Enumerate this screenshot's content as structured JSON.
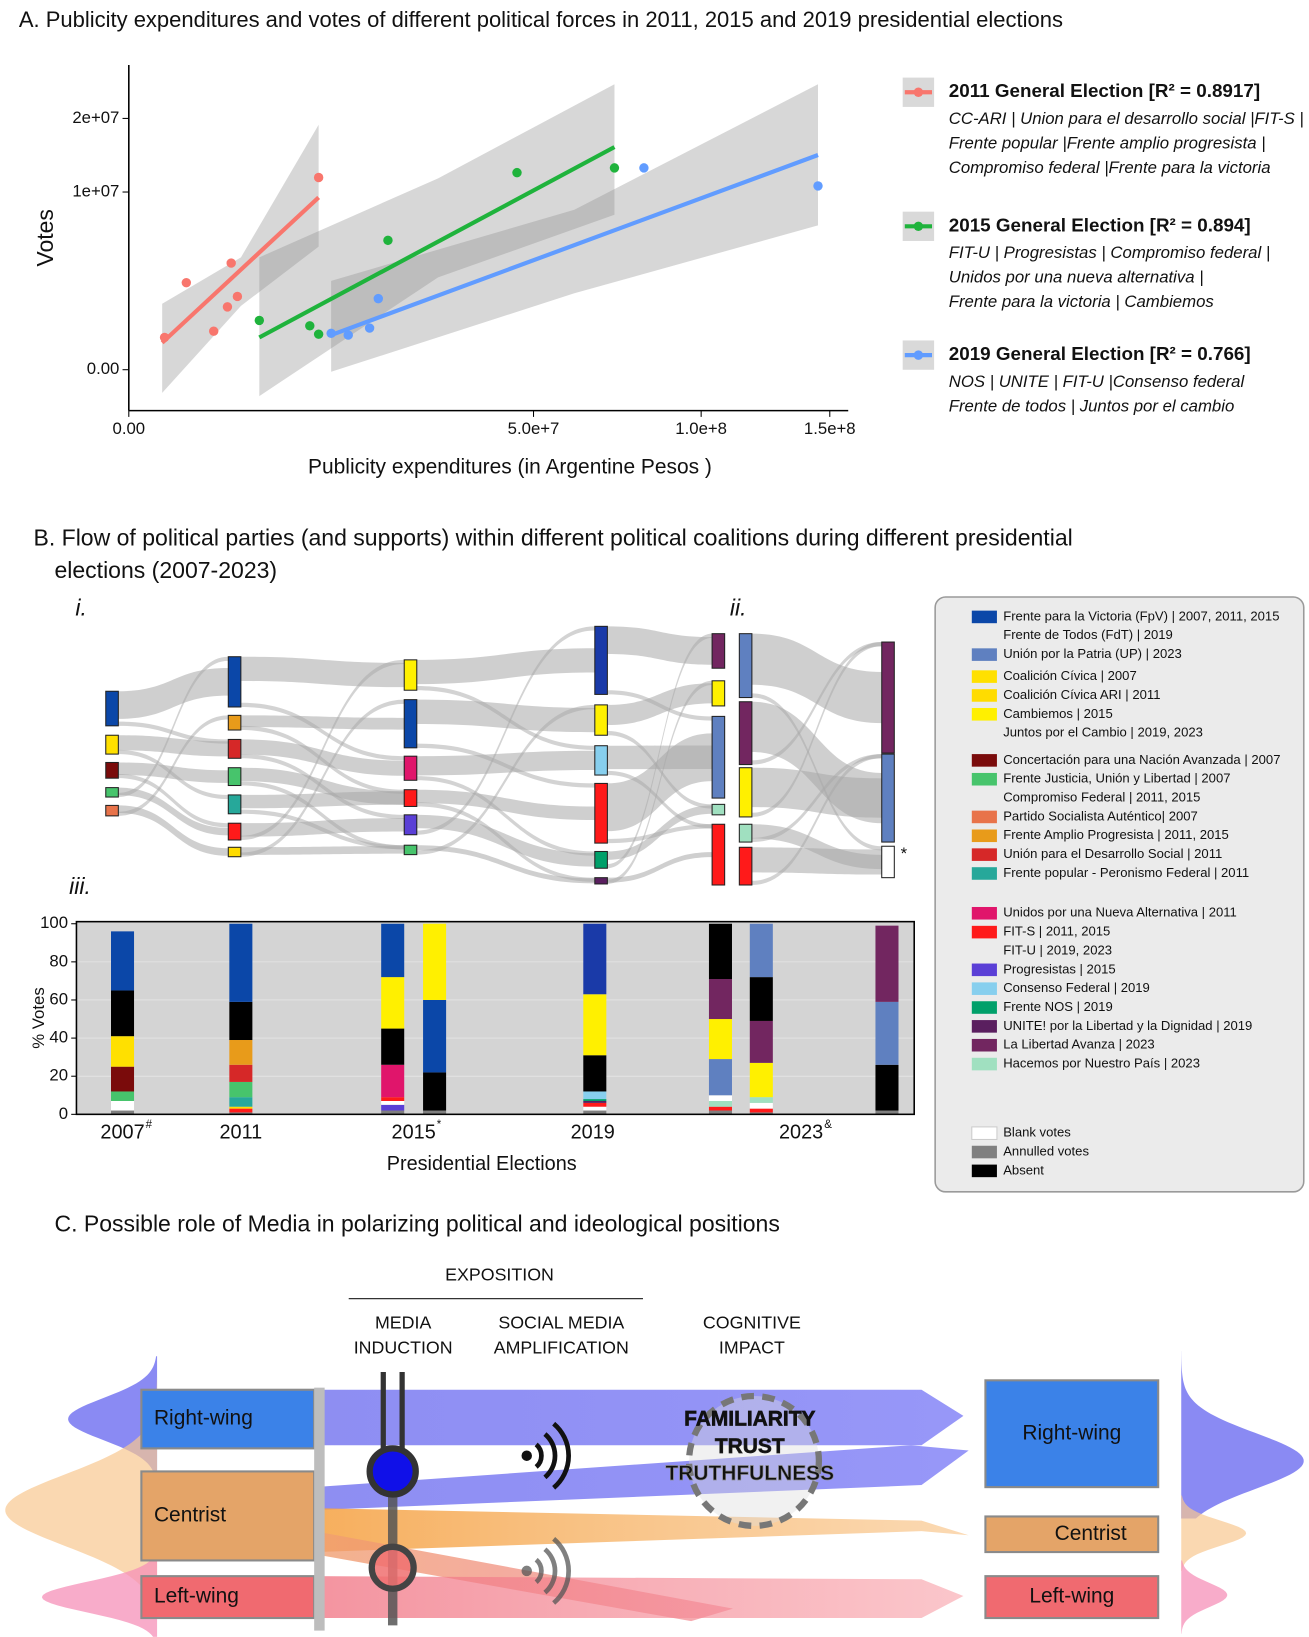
{
  "chart_data": [
    {
      "type": "scatter",
      "title": "A. Publicity expenditures and votes of different political forces in 2011, 2015 and 2019 presidential elections",
      "x_label": "Publicity expenditures (in Argentine Pesos )",
      "y_label": "Votes",
      "xscale": "sqrt",
      "yscale": "sqrt",
      "xlim": [
        0,
        158000000
      ],
      "ylim": [
        -530000,
        29400000
      ],
      "xticks": [
        {
          "value": 0,
          "label": "0.00"
        },
        {
          "value": 50000000,
          "label": "5.0e+7"
        },
        {
          "value": 100000000,
          "label": "1.0e+8"
        },
        {
          "value": 150000000,
          "label": "1.5e+8"
        }
      ],
      "yticks": [
        {
          "value": 0,
          "label": "0.00"
        },
        {
          "value": 10000000,
          "label": "1e+07"
        },
        {
          "value": 20000000,
          "label": "2e+07"
        }
      ],
      "series": [
        {
          "name": "2011 General Election [R² = 0.8917]",
          "color": "#f8766d",
          "parties": [
            "CC-ARI | Union para el desarrollo social |FIT-S |",
            "Frente popular |Frente amplio progresista |",
            "Compromiso federal |Frente para la victoria"
          ],
          "x": [
            390000,
            1010000,
            2200000,
            2970000,
            3200000,
            3600000,
            11000000
          ],
          "y": [
            330000,
            2400000,
            470000,
            1250000,
            3600000,
            1700000,
            11700000
          ],
          "fit": {
            "x": [
              340000,
              11000000
            ],
            "y": [
              230000,
              9400000
            ]
          },
          "band": {
            "x": [
              340000,
              3840000,
              11000000
            ],
            "upper": [
              1380000,
              4000000,
              19000000
            ],
            "lower": [
              -170000,
              1290000,
              4800000
            ]
          }
        },
        {
          "name": "2015 General Election  [R² = 0.894]",
          "color": "#1fb33c",
          "parties": [
            "FIT-U | Progresistas | Compromiso federal |",
            "Unidos por una nueva alternativa |",
            "Frente para la victoria | Cambiemos"
          ],
          "x": [
            5200000,
            10000000,
            11000000,
            20500000,
            46000000,
            72000000
          ],
          "y": [
            770000,
            610000,
            400000,
            5300000,
            12300000,
            12900000
          ],
          "fit": {
            "x": [
              5200000,
              72000000
            ],
            "y": [
              330000,
              15700000
            ]
          },
          "band": {
            "x": [
              5200000,
              29200000,
              72000000
            ],
            "upper": [
              4000000,
              11600000,
              25800000
            ],
            "lower": [
              -220000,
              2700000,
              7600000
            ]
          }
        },
        {
          "name": "2019 General Election  [R² = 0.766]",
          "color": "#619cff",
          "parties": [
            "NOS | UNITE | FIT-U |Consenso federal",
            "Frente de todos | Juntos por el cambio"
          ],
          "x": [
            12500000,
            14700000,
            17700000,
            19000000,
            81000000,
            145000000
          ],
          "y": [
            420000,
            380000,
            550000,
            1600000,
            12900000,
            10700000
          ],
          "fit": {
            "x": [
              12500000,
              145000000
            ],
            "y": [
              380000,
              14600000
            ]
          },
          "band": {
            "x": [
              12500000,
              60600000,
              145000000
            ],
            "upper": [
              2500000,
              8100000,
              25800000
            ],
            "lower": [
              -1400,
              1850000,
              6600000
            ]
          }
        }
      ]
    },
    {
      "type": "bar",
      "stacked": true,
      "y_label": "% Votes",
      "x_label": "Presidential Elections",
      "ylim": [
        0,
        100
      ],
      "yticks": [
        0,
        20,
        40,
        60,
        80,
        100
      ],
      "groups": [
        {
          "label": "2007",
          "mark": "#"
        },
        {
          "label": "2011"
        },
        {
          "label": "2015",
          "mark": "*"
        },
        {
          "label": "2019"
        },
        {
          "label": "2023",
          "mark": "&"
        }
      ],
      "bars": [
        {
          "segments": [
            {
              "color": "#7f7f7f",
              "value": 2
            },
            {
              "color": "#ffffff",
              "value": 5
            },
            {
              "color": "#47c46c",
              "value": 5
            },
            {
              "color": "#7a0b0b",
              "value": 13
            },
            {
              "color": "#ffe000",
              "value": 16
            },
            {
              "color": "#000000",
              "value": 24
            },
            {
              "color": "#0b47a8",
              "value": 31
            }
          ]
        },
        {
          "segments": [
            {
              "color": "#7f7f7f",
              "value": 1
            },
            {
              "color": "#ff1a1a",
              "value": 2
            },
            {
              "color": "#ffdc00",
              "value": 1
            },
            {
              "color": "#26a89a",
              "value": 5
            },
            {
              "color": "#47c46c",
              "value": 8
            },
            {
              "color": "#d62828",
              "value": 9
            },
            {
              "color": "#e89b1a",
              "value": 13
            },
            {
              "color": "#000000",
              "value": 20
            },
            {
              "color": "#0b47a8",
              "value": 41
            }
          ]
        },
        {
          "segments": [
            {
              "color": "#7f7f7f",
              "value": 2
            },
            {
              "color": "#5a3fd6",
              "value": 3
            },
            {
              "color": "#ffffff",
              "value": 2
            },
            {
              "color": "#ff1a1a",
              "value": 2
            },
            {
              "color": "#e0156b",
              "value": 17
            },
            {
              "color": "#000000",
              "value": 19
            },
            {
              "color": "#fff000",
              "value": 27
            },
            {
              "color": "#0b47a8",
              "value": 28
            }
          ]
        },
        {
          "segments": [
            {
              "color": "#7f7f7f",
              "value": 2
            },
            {
              "color": "#000000",
              "value": 20
            },
            {
              "color": "#0b47a8",
              "value": 38
            },
            {
              "color": "#fff000",
              "value": 40
            }
          ]
        },
        {
          "segments": [
            {
              "color": "#7f7f7f",
              "value": 2
            },
            {
              "color": "#ffffff",
              "value": 2
            },
            {
              "color": "#ff1a1a",
              "value": 2
            },
            {
              "color": "#5a1f5f",
              "value": 1
            },
            {
              "color": "#00a06a",
              "value": 1
            },
            {
              "color": "#87cfee",
              "value": 4
            },
            {
              "color": "#000000",
              "value": 19
            },
            {
              "color": "#fff000",
              "value": 32
            },
            {
              "color": "#1a3aa8",
              "value": 37
            }
          ]
        },
        {
          "segments": [
            {
              "color": "#7f7f7f",
              "value": 2
            },
            {
              "color": "#ff1a1a",
              "value": 2
            },
            {
              "color": "#a0e0c0",
              "value": 3
            },
            {
              "color": "#ffffff",
              "value": 3
            },
            {
              "color": "#5f80c0",
              "value": 19
            },
            {
              "color": "#fff000",
              "value": 21
            },
            {
              "color": "#722660",
              "value": 21
            },
            {
              "color": "#000000",
              "value": 29
            }
          ]
        },
        {
          "segments": [
            {
              "color": "#7f7f7f",
              "value": 1
            },
            {
              "color": "#ff1a1a",
              "value": 2
            },
            {
              "color": "#ffffff",
              "value": 3
            },
            {
              "color": "#a0e0c0",
              "value": 3
            },
            {
              "color": "#fff000",
              "value": 18
            },
            {
              "color": "#722660",
              "value": 22
            },
            {
              "color": "#000000",
              "value": 23
            },
            {
              "color": "#5f80c0",
              "value": 28
            }
          ]
        },
        {
          "segments": [
            {
              "color": "#7f7f7f",
              "value": 2
            },
            {
              "color": "#000000",
              "value": 24
            },
            {
              "color": "#5f80c0",
              "value": 33
            },
            {
              "color": "#722660",
              "value": 40
            }
          ]
        }
      ]
    }
  ],
  "panel_b": {
    "title_lines": [
      "B. Flow of political parties  (and supports) within different  political  coalitions during different presidential",
      "elections (2007-2023)"
    ],
    "labels": [
      "i.",
      "ii.",
      "iii."
    ],
    "note": "*",
    "legend": [
      [
        {
          "color": "#0b47a8",
          "lines": [
            "Frente para la Victoria (FpV) | 2007, 2011, 2015",
            "Frente de Todos (FdT) | 2019"
          ]
        },
        {
          "color": "#5f80c0",
          "lines": [
            "Unión por la Patria (UP) | 2023"
          ]
        }
      ],
      [
        {
          "color": "#ffe000",
          "lines": [
            "Coalición Cívica | 2007"
          ]
        },
        {
          "color": "#ffdc00",
          "lines": [
            "Coalición Cívica ARI | 2011"
          ]
        },
        {
          "color": "#fff000",
          "lines": [
            "Cambiemos | 2015",
            "Juntos por el Cambio | 2019, 2023"
          ]
        }
      ],
      [
        {
          "color": "#7a0b0b",
          "lines": [
            "Concertación para una Nación Avanzada | 2007"
          ]
        },
        {
          "color": "#47c46c",
          "lines": [
            "Frente Justicia, Unión y Libertad | 2007",
            "Compromiso Federal | 2011, 2015"
          ]
        },
        {
          "color": "#e8734a",
          "lines": [
            "Partido Socialista Auténtico| 2007"
          ]
        },
        {
          "color": "#e89b1a",
          "lines": [
            "Frente Amplio Progresista | 2011, 2015"
          ]
        },
        {
          "color": "#d62828",
          "lines": [
            "Unión para el Desarrollo Social | 2011"
          ]
        },
        {
          "color": "#26a89a",
          "lines": [
            "Frente popular - Peronismo Federal | 2011"
          ]
        }
      ],
      [
        {
          "color": "#e0156b",
          "lines": [
            "Unidos por una Nueva Alternativa | 2011"
          ]
        },
        {
          "color": "#ff1a1a",
          "lines": [
            "FIT-S | 2011, 2015",
            "FIT-U | 2019, 2023"
          ]
        },
        {
          "color": "#5a3fd6",
          "lines": [
            "Progresistas | 2015"
          ]
        },
        {
          "color": "#87cfee",
          "lines": [
            "Consenso Federal | 2019"
          ]
        },
        {
          "color": "#00a06a",
          "lines": [
            "Frente NOS | 2019"
          ]
        },
        {
          "color": "#5a1f5f",
          "lines": [
            "UNITE! por la Libertad y la Dignidad | 2019"
          ]
        },
        {
          "color": "#722660",
          "lines": [
            "La Libertad Avanza | 2023"
          ]
        },
        {
          "color": "#a0e0c0",
          "lines": [
            "Hacemos por Nuestro País | 2023"
          ]
        }
      ],
      [
        {
          "color": "#ffffff",
          "lines": [
            "Blank votes"
          ]
        },
        {
          "color": "#7f7f7f",
          "lines": [
            "Annulled votes"
          ]
        },
        {
          "color": "#000000",
          "lines": [
            "Absent"
          ]
        }
      ]
    ]
  },
  "panel_c": {
    "title": "C. Possible role of Media in polarizing political and ideological positions",
    "exposition": "EXPOSITION",
    "stages": [
      [
        "MEDIA",
        "INDUCTION"
      ],
      [
        "SOCIAL MEDIA",
        "AMPLIFICATION"
      ],
      [
        "COGNITIVE",
        "IMPACT"
      ]
    ],
    "groups": [
      "Right-wing",
      "Centrist",
      "Left-wing"
    ],
    "effects": [
      "FAMILIARITY",
      "TRUST",
      "TRUTHFULNESS"
    ]
  }
}
